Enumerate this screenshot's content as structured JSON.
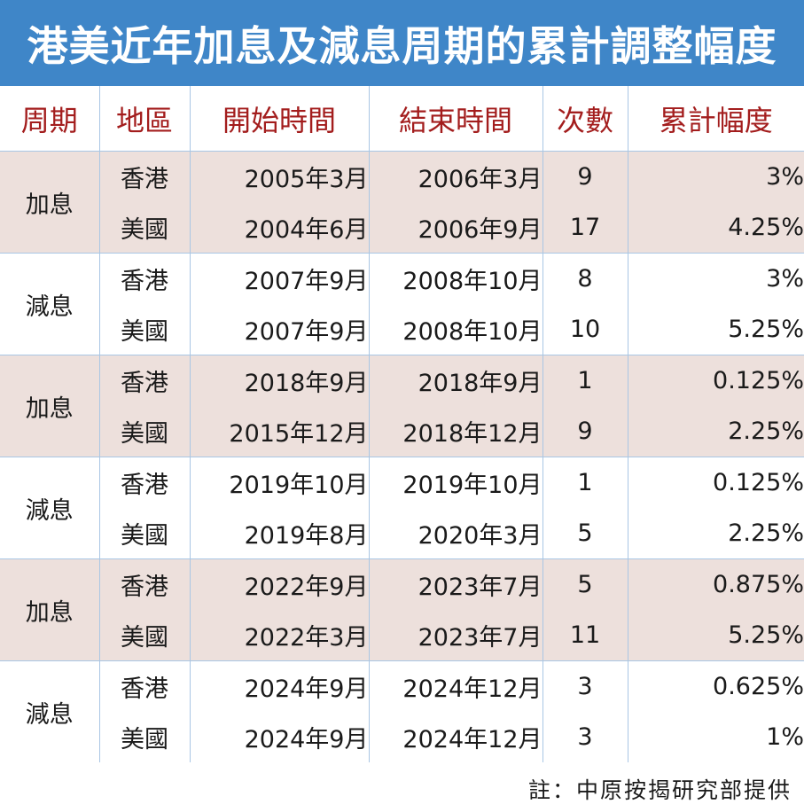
{
  "title": "港美近年加息及減息周期的累計調整幅度",
  "headers": [
    "周期",
    "地區",
    "開始時間",
    "結束時間",
    "次數",
    "累計幅度"
  ],
  "groups": [
    {
      "cycle": "加息",
      "rows": [
        {
          "region": "香港",
          "start": "2005年3月",
          "end": "2006年3月",
          "count": "9",
          "amount": "3%"
        },
        {
          "region": "美國",
          "start": "2004年6月",
          "end": "2006年9月",
          "count": "17",
          "amount": "4.25%"
        }
      ]
    },
    {
      "cycle": "減息",
      "rows": [
        {
          "region": "香港",
          "start": "2007年9月",
          "end": "2008年10月",
          "count": "8",
          "amount": "3%"
        },
        {
          "region": "美國",
          "start": "2007年9月",
          "end": "2008年10月",
          "count": "10",
          "amount": "5.25%"
        }
      ]
    },
    {
      "cycle": "加息",
      "rows": [
        {
          "region": "香港",
          "start": "2018年9月",
          "end": "2018年9月",
          "count": "1",
          "amount": "0.125%"
        },
        {
          "region": "美國",
          "start": "2015年12月",
          "end": "2018年12月",
          "count": "9",
          "amount": "2.25%"
        }
      ]
    },
    {
      "cycle": "減息",
      "rows": [
        {
          "region": "香港",
          "start": "2019年10月",
          "end": "2019年10月",
          "count": "1",
          "amount": "0.125%"
        },
        {
          "region": "美國",
          "start": "2019年8月",
          "end": "2020年3月",
          "count": "5",
          "amount": "2.25%"
        }
      ]
    },
    {
      "cycle": "加息",
      "rows": [
        {
          "region": "香港",
          "start": "2022年9月",
          "end": "2023年7月",
          "count": "5",
          "amount": "0.875%"
        },
        {
          "region": "美國",
          "start": "2022年3月",
          "end": "2023年7月",
          "count": "11",
          "amount": "5.25%"
        }
      ]
    },
    {
      "cycle": "減息",
      "rows": [
        {
          "region": "香港",
          "start": "2024年9月",
          "end": "2024年12月",
          "count": "3",
          "amount": "0.625%"
        },
        {
          "region": "美國",
          "start": "2024年9月",
          "end": "2024年12月",
          "count": "3",
          "amount": "1%"
        }
      ]
    }
  ],
  "note": "註：中原按揭研究部提供",
  "colors": {
    "title_bar": "#3f86c8",
    "header_text": "#a31d1d",
    "band": "#ede0dc",
    "grid_line": "#a9c6e4"
  }
}
